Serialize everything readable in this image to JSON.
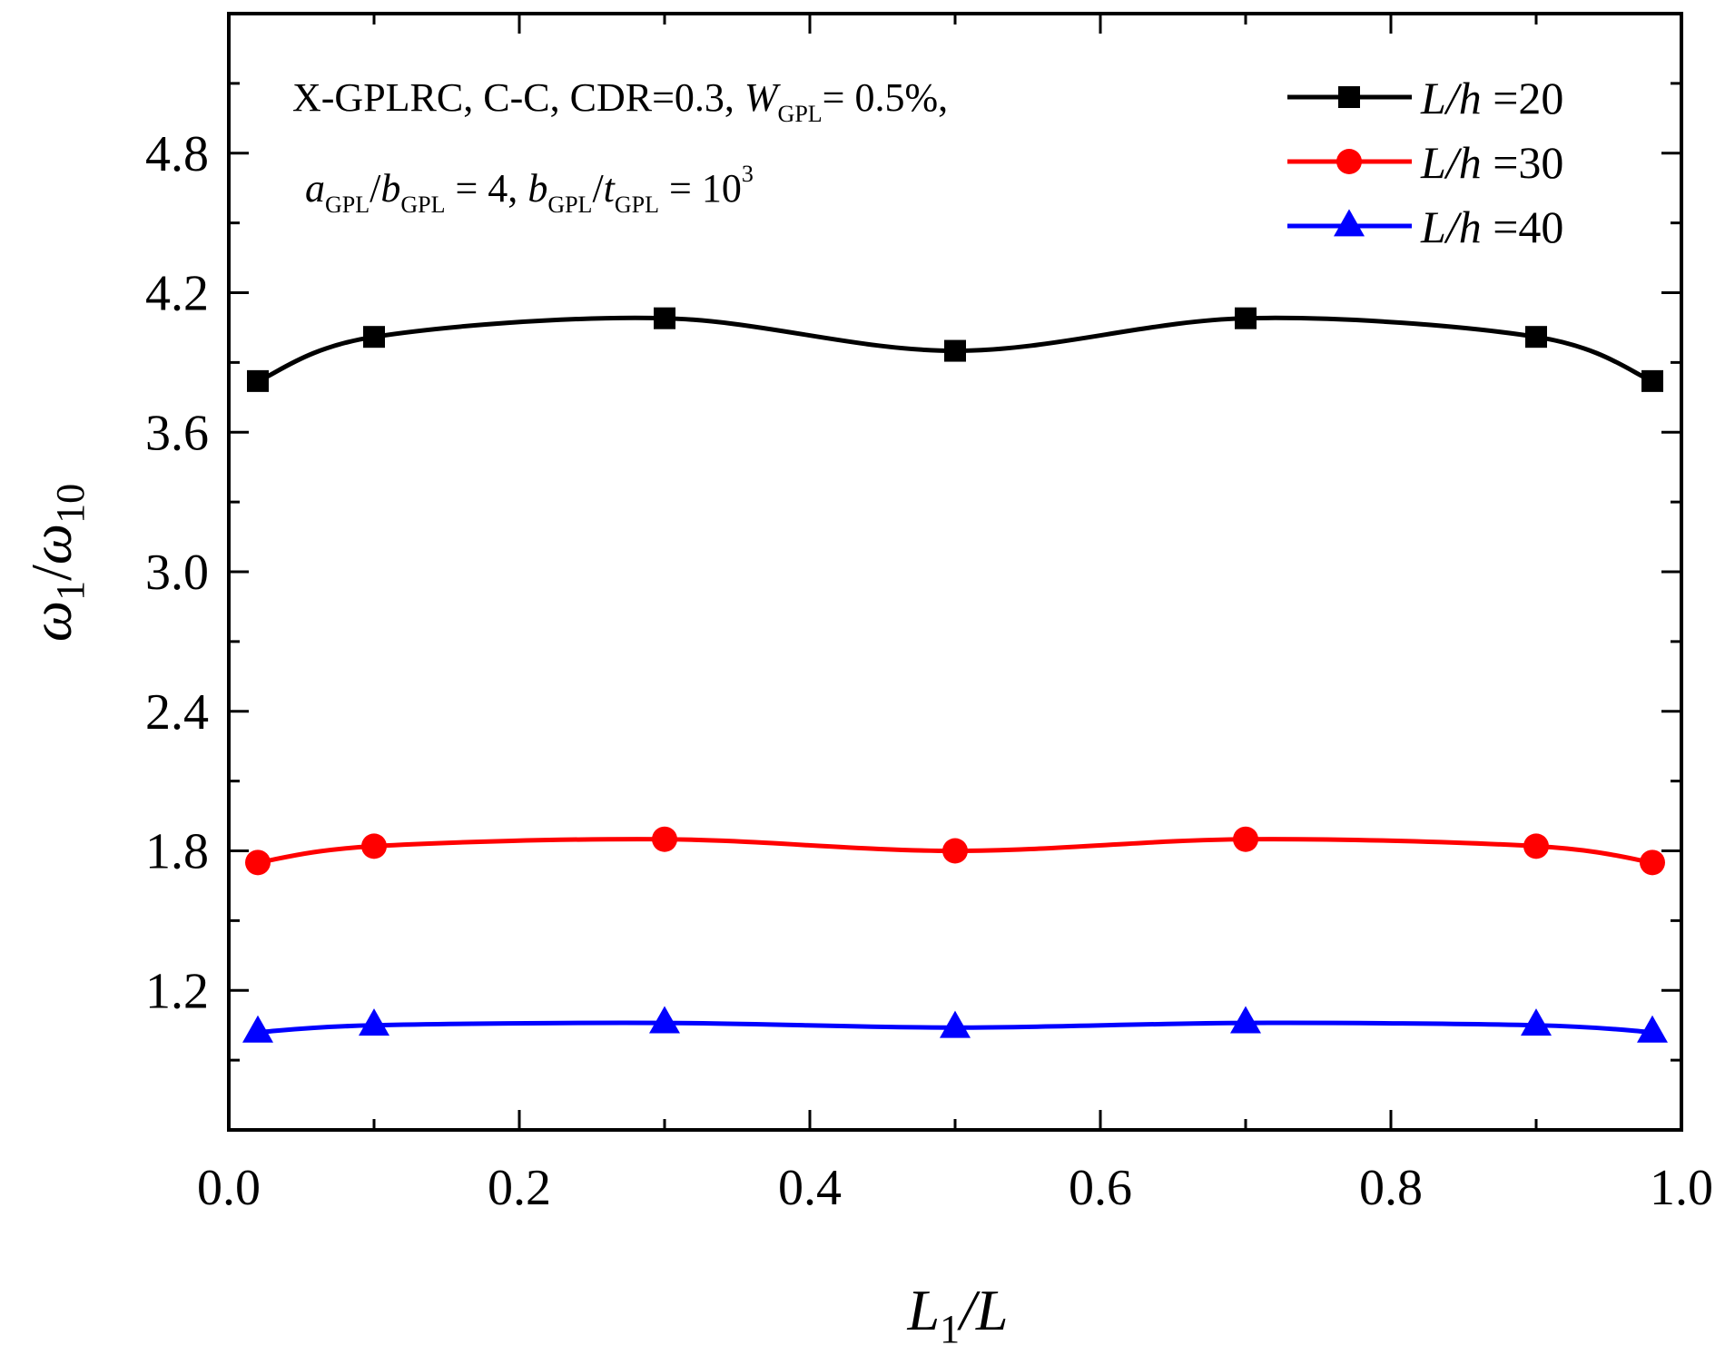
{
  "chart_data": {
    "type": "line",
    "xlabel": {
      "main": "L",
      "sub": "1",
      "rest": "/L"
    },
    "ylabel": {
      "a": "ω",
      "a_sub": "1",
      "slash": "/",
      "b": "ω",
      "b_sub": "10"
    },
    "xlim": [
      0,
      1
    ],
    "ylim": [
      0.6,
      5.4
    ],
    "xticks": [
      0.0,
      0.2,
      0.4,
      0.6,
      0.8,
      1.0
    ],
    "xtick_labels": [
      "0.0",
      "0.2",
      "0.4",
      "0.6",
      "0.8",
      "1.0"
    ],
    "yticks": [
      1.2,
      1.8,
      2.4,
      3.0,
      3.6,
      4.2,
      4.8
    ],
    "ytick_labels": [
      "1.2",
      "1.8",
      "2.4",
      "3.0",
      "3.6",
      "4.2",
      "4.8"
    ],
    "annotation": {
      "line1_prefix": "X-GPLRC, C-C, CDR=0.3, ",
      "line1_W": "W",
      "line1_W_sub": "GPL",
      "line1_suffix": "= 0.5%,",
      "a": "a",
      "a_sub": "GPL",
      "slash1": "/",
      "b": "b",
      "b_sub": "GPL",
      "eq1": " = 4,  ",
      "b2": "b",
      "b2_sub": "GPL",
      "slash2": "/",
      "t": "t",
      "t_sub": "GPL",
      "eq2": " = 10",
      "exp": "3"
    },
    "legend_position": "top-right",
    "series": [
      {
        "name": "L/h =20",
        "label_italic": "L/h",
        "label_rest": " =20",
        "color": "#000000",
        "marker": "square",
        "x": [
          0.02,
          0.1,
          0.3,
          0.5,
          0.7,
          0.9,
          0.98
        ],
        "values": [
          3.82,
          4.01,
          4.09,
          3.95,
          4.09,
          4.01,
          3.82
        ]
      },
      {
        "name": "L/h =30",
        "label_italic": "L/h",
        "label_rest": " =30",
        "color": "#ff0000",
        "marker": "circle",
        "x": [
          0.02,
          0.1,
          0.3,
          0.5,
          0.7,
          0.9,
          0.98
        ],
        "values": [
          1.75,
          1.82,
          1.85,
          1.8,
          1.85,
          1.82,
          1.75
        ]
      },
      {
        "name": "L/h =40",
        "label_italic": "L/h",
        "label_rest": " =40",
        "color": "#0000ff",
        "marker": "triangle",
        "x": [
          0.02,
          0.1,
          0.3,
          0.5,
          0.7,
          0.9,
          0.98
        ],
        "values": [
          1.02,
          1.05,
          1.06,
          1.04,
          1.06,
          1.05,
          1.02
        ]
      }
    ]
  }
}
